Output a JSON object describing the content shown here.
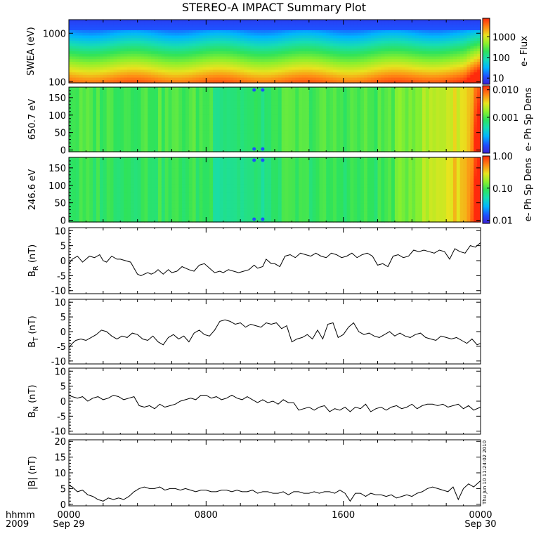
{
  "title": "STEREO-A IMPACT Summary Plot",
  "time_axis": {
    "row_label_1": "hhmm",
    "row_label_2": "2009",
    "ticks": [
      {
        "hour": 0,
        "label": "0000",
        "date": "Sep 29"
      },
      {
        "hour": 8,
        "label": "0800",
        "date": ""
      },
      {
        "hour": 16,
        "label": "1600",
        "date": ""
      },
      {
        "hour": 24,
        "label": "0000",
        "date": "Sep 30"
      }
    ]
  },
  "timestamp": "Thu Jun 10 11:24:02 2010",
  "chart_data": [
    {
      "type": "heatmap",
      "ylabel": "SWEA (eV)",
      "yscale": "log",
      "ylim": [
        95,
        1900
      ],
      "yticks": [
        {
          "v": 100,
          "label": "100"
        },
        {
          "v": 1000,
          "label": "1000"
        }
      ],
      "colorbar": {
        "label": "e- Flux",
        "scale": "log",
        "range": [
          5,
          8000
        ],
        "ticks": [
          {
            "v": 10,
            "label": "10"
          },
          {
            "v": 100,
            "label": "100"
          },
          {
            "v": 1000,
            "label": "1000"
          }
        ]
      }
    },
    {
      "type": "heatmap",
      "ylabel": "650.7 eV",
      "ylim": [
        -5,
        180
      ],
      "yticks": [
        {
          "v": 0,
          "label": "0"
        },
        {
          "v": 50,
          "label": "50"
        },
        {
          "v": 100,
          "label": "100"
        },
        {
          "v": 150,
          "label": "150"
        }
      ],
      "colorbar": {
        "label": "e- Ph Sp Dens",
        "scale": "log",
        "range": [
          5e-05,
          0.014
        ],
        "ticks": [
          {
            "v": 0.001,
            "label": "0.001"
          },
          {
            "v": 0.01,
            "label": "0.010"
          }
        ]
      }
    },
    {
      "type": "heatmap",
      "ylabel": "246.6 eV",
      "ylim": [
        -5,
        180
      ],
      "yticks": [
        {
          "v": 0,
          "label": "0"
        },
        {
          "v": 50,
          "label": "50"
        },
        {
          "v": 100,
          "label": "100"
        },
        {
          "v": 150,
          "label": "150"
        }
      ],
      "colorbar": {
        "label": "e- Ph Sp Dens",
        "scale": "log",
        "range": [
          0.008,
          1.0
        ],
        "ticks": [
          {
            "v": 0.01,
            "label": "0.01"
          },
          {
            "v": 0.1,
            "label": "0.10"
          },
          {
            "v": 1.0,
            "label": "1.00"
          }
        ]
      }
    },
    {
      "type": "line",
      "ylabel_main": "B",
      "ylabel_sub": "R",
      "ylabel_unit": " (nT)",
      "ylim": [
        -11,
        11
      ],
      "yticks": [
        {
          "v": -10,
          "label": "-10"
        },
        {
          "v": -5,
          "label": "-5"
        },
        {
          "v": 0,
          "label": "0"
        },
        {
          "v": 5,
          "label": "5"
        },
        {
          "v": 10,
          "label": "10"
        }
      ],
      "series": [
        {
          "x": [
            0,
            0.2,
            0.5,
            0.8,
            1.0,
            1.2,
            1.5,
            1.8,
            2.0,
            2.2,
            2.5,
            2.8,
            3.0,
            3.3,
            3.6,
            3.8,
            4.0,
            4.2,
            4.4,
            4.6,
            4.8,
            5.0,
            5.2,
            5.5,
            5.8,
            6.0,
            6.3,
            6.6,
            7.0,
            7.3,
            7.6,
            7.9,
            8.2,
            8.5,
            8.8,
            9.0,
            9.3,
            9.6,
            9.9,
            10.2,
            10.5,
            10.8,
            11.0,
            11.3,
            11.5,
            11.8,
            12.0,
            12.3,
            12.6,
            12.9,
            13.2,
            13.5,
            13.8,
            14.1,
            14.4,
            14.7,
            15.0,
            15.3,
            15.6,
            15.9,
            16.2,
            16.5,
            16.8,
            17.1,
            17.4,
            17.7,
            18.0,
            18.3,
            18.6,
            18.9,
            19.2,
            19.5,
            19.8,
            20.1,
            20.4,
            20.7,
            21.0,
            21.3,
            21.6,
            21.9,
            22.2,
            22.5,
            22.8,
            23.1,
            23.4,
            23.7,
            24.0
          ],
          "y": [
            -1.0,
            0.5,
            1.5,
            -0.5,
            0.5,
            1.5,
            1.0,
            2.0,
            0.0,
            -0.5,
            1.5,
            0.5,
            0.5,
            0.0,
            -0.5,
            -2.5,
            -4.5,
            -5.0,
            -4.5,
            -4.0,
            -4.5,
            -4.0,
            -3.0,
            -4.5,
            -3.0,
            -4.0,
            -3.5,
            -2.0,
            -3.0,
            -3.5,
            -1.5,
            -1.0,
            -2.5,
            -4.0,
            -3.5,
            -4.0,
            -3.0,
            -3.5,
            -4.0,
            -3.5,
            -3.0,
            -1.5,
            -2.5,
            -2.0,
            0.5,
            -1.0,
            -1.0,
            -2.0,
            1.5,
            2.0,
            1.0,
            2.5,
            2.0,
            1.5,
            2.5,
            1.5,
            1.0,
            2.5,
            2.0,
            1.0,
            1.5,
            2.5,
            1.0,
            2.0,
            2.5,
            1.5,
            -1.5,
            -1.0,
            -2.0,
            1.5,
            2.0,
            1.0,
            1.5,
            3.5,
            3.0,
            3.5,
            3.0,
            2.5,
            3.5,
            3.0,
            0.5,
            4.0,
            3.0,
            2.5,
            5.0,
            4.5,
            6.0
          ]
        }
      ]
    },
    {
      "type": "line",
      "ylabel_main": "B",
      "ylabel_sub": "T",
      "ylabel_unit": " (nT)",
      "ylim": [
        -11,
        11
      ],
      "yticks": [
        {
          "v": -10,
          "label": "-10"
        },
        {
          "v": -5,
          "label": "-5"
        },
        {
          "v": 0,
          "label": "0"
        },
        {
          "v": 5,
          "label": "5"
        },
        {
          "v": 10,
          "label": "10"
        }
      ],
      "series": [
        {
          "x": [
            0,
            0.2,
            0.4,
            0.7,
            1.0,
            1.3,
            1.6,
            1.9,
            2.2,
            2.5,
            2.8,
            3.1,
            3.4,
            3.7,
            4.0,
            4.3,
            4.6,
            4.9,
            5.2,
            5.5,
            5.8,
            6.1,
            6.4,
            6.7,
            7.0,
            7.3,
            7.6,
            7.9,
            8.2,
            8.5,
            8.8,
            9.1,
            9.4,
            9.7,
            10.0,
            10.3,
            10.6,
            10.9,
            11.2,
            11.5,
            11.8,
            12.1,
            12.4,
            12.7,
            13.0,
            13.3,
            13.6,
            13.9,
            14.2,
            14.5,
            14.8,
            15.1,
            15.4,
            15.7,
            16.0,
            16.3,
            16.6,
            16.9,
            17.2,
            17.5,
            17.8,
            18.1,
            18.4,
            18.7,
            19.0,
            19.3,
            19.6,
            19.9,
            20.2,
            20.5,
            20.8,
            21.1,
            21.4,
            21.7,
            22.0,
            22.3,
            22.6,
            22.9,
            23.2,
            23.5,
            23.8,
            24.0
          ],
          "y": [
            -5.5,
            -4.0,
            -3.0,
            -2.5,
            -3.0,
            -2.0,
            -1.0,
            0.5,
            0.0,
            -1.5,
            -2.5,
            -1.5,
            -2.0,
            -0.5,
            -1.0,
            -2.5,
            -3.0,
            -1.5,
            -3.5,
            -4.5,
            -2.0,
            -1.0,
            -2.5,
            -1.5,
            -3.5,
            -0.5,
            0.5,
            -1.0,
            -1.5,
            0.5,
            3.5,
            4.0,
            3.5,
            2.5,
            3.0,
            1.5,
            2.5,
            2.0,
            1.5,
            3.0,
            2.5,
            3.0,
            1.0,
            2.0,
            -3.5,
            -2.5,
            -2.0,
            -1.0,
            -2.5,
            0.5,
            -2.5,
            2.5,
            3.0,
            -2.0,
            -1.0,
            1.5,
            3.0,
            0.0,
            -1.0,
            -0.5,
            -1.5,
            -2.0,
            -1.0,
            0.0,
            -1.5,
            -0.5,
            -1.5,
            -2.0,
            -1.0,
            -0.5,
            -2.0,
            -2.5,
            -3.0,
            -1.5,
            -2.0,
            -2.5,
            -2.0,
            -3.0,
            -4.0,
            -2.5,
            -4.5,
            -4.0
          ]
        }
      ]
    },
    {
      "type": "line",
      "ylabel_main": "B",
      "ylabel_sub": "N",
      "ylabel_unit": " (nT)",
      "ylim": [
        -11,
        11
      ],
      "yticks": [
        {
          "v": -10,
          "label": "-10"
        },
        {
          "v": -5,
          "label": "-5"
        },
        {
          "v": 0,
          "label": "0"
        },
        {
          "v": 5,
          "label": "5"
        },
        {
          "v": 10,
          "label": "10"
        }
      ],
      "series": [
        {
          "x": [
            0,
            0.2,
            0.5,
            0.8,
            1.1,
            1.4,
            1.7,
            2.0,
            2.3,
            2.6,
            2.9,
            3.2,
            3.5,
            3.8,
            4.1,
            4.4,
            4.7,
            5.0,
            5.3,
            5.6,
            5.9,
            6.2,
            6.5,
            6.8,
            7.1,
            7.4,
            7.7,
            8.0,
            8.3,
            8.6,
            8.9,
            9.2,
            9.5,
            9.8,
            10.1,
            10.4,
            10.7,
            11.0,
            11.3,
            11.6,
            11.9,
            12.2,
            12.5,
            12.8,
            13.1,
            13.4,
            13.7,
            14.0,
            14.3,
            14.6,
            14.9,
            15.2,
            15.5,
            15.8,
            16.1,
            16.4,
            16.7,
            17.0,
            17.3,
            17.6,
            17.9,
            18.2,
            18.5,
            18.8,
            19.1,
            19.4,
            19.7,
            20.0,
            20.3,
            20.6,
            20.9,
            21.2,
            21.5,
            21.8,
            22.1,
            22.4,
            22.7,
            23.0,
            23.3,
            23.6,
            24.0
          ],
          "y": [
            2.0,
            1.5,
            1.0,
            1.5,
            0.0,
            1.0,
            1.5,
            0.5,
            1.0,
            2.0,
            1.5,
            0.5,
            1.0,
            1.5,
            -1.5,
            -2.0,
            -1.5,
            -2.5,
            -1.0,
            -2.0,
            -1.5,
            -1.0,
            0.0,
            0.5,
            1.0,
            0.5,
            2.0,
            2.0,
            1.0,
            1.5,
            0.5,
            1.0,
            2.0,
            1.0,
            0.5,
            1.5,
            0.5,
            -0.5,
            0.5,
            -0.5,
            0.0,
            -1.0,
            0.5,
            -0.5,
            -0.5,
            -3.0,
            -2.5,
            -2.0,
            -3.0,
            -2.0,
            -1.5,
            -3.5,
            -2.5,
            -3.0,
            -2.0,
            -3.5,
            -2.0,
            -2.5,
            -1.0,
            -3.5,
            -2.5,
            -2.0,
            -3.0,
            -2.0,
            -1.5,
            -2.5,
            -2.0,
            -1.0,
            -2.5,
            -1.5,
            -1.0,
            -1.0,
            -1.5,
            -1.0,
            -2.0,
            -1.5,
            -1.0,
            -2.5,
            -1.5,
            -3.0,
            -2.0
          ]
        }
      ]
    },
    {
      "type": "line",
      "ylabel_main": "|B| (nT)",
      "ylim": [
        -0.5,
        20.5
      ],
      "yticks": [
        {
          "v": 0,
          "label": "0"
        },
        {
          "v": 5,
          "label": "5"
        },
        {
          "v": 10,
          "label": "10"
        },
        {
          "v": 15,
          "label": "15"
        },
        {
          "v": 20,
          "label": "20"
        }
      ],
      "series": [
        {
          "x": [
            0,
            0.2,
            0.5,
            0.8,
            1.1,
            1.4,
            1.7,
            2.0,
            2.3,
            2.6,
            2.9,
            3.2,
            3.5,
            3.8,
            4.1,
            4.4,
            4.7,
            5.0,
            5.3,
            5.6,
            5.9,
            6.2,
            6.5,
            6.8,
            7.1,
            7.4,
            7.7,
            8.0,
            8.3,
            8.6,
            8.9,
            9.2,
            9.5,
            9.8,
            10.1,
            10.4,
            10.7,
            11.0,
            11.3,
            11.6,
            11.9,
            12.2,
            12.5,
            12.8,
            13.1,
            13.4,
            13.7,
            14.0,
            14.3,
            14.6,
            14.9,
            15.2,
            15.5,
            15.8,
            16.1,
            16.4,
            16.7,
            17.0,
            17.3,
            17.6,
            17.9,
            18.2,
            18.5,
            18.8,
            19.1,
            19.4,
            19.7,
            20.0,
            20.3,
            20.6,
            20.9,
            21.2,
            21.5,
            21.8,
            22.1,
            22.4,
            22.7,
            23.0,
            23.3,
            23.6,
            24.0
          ],
          "y": [
            6.0,
            5.5,
            4.0,
            4.5,
            3.0,
            2.5,
            1.5,
            1.0,
            2.0,
            1.5,
            2.0,
            1.5,
            2.5,
            4.0,
            5.0,
            5.5,
            5.0,
            5.0,
            5.5,
            4.5,
            5.0,
            5.0,
            4.5,
            5.0,
            4.5,
            4.0,
            4.5,
            4.5,
            4.0,
            4.0,
            4.5,
            4.5,
            4.0,
            4.5,
            4.0,
            4.0,
            4.5,
            3.5,
            4.0,
            4.0,
            3.5,
            3.5,
            4.0,
            3.0,
            4.0,
            4.0,
            3.5,
            3.5,
            4.0,
            3.5,
            4.0,
            4.0,
            3.5,
            4.5,
            3.5,
            1.0,
            3.5,
            3.5,
            2.5,
            3.5,
            3.0,
            3.0,
            2.5,
            3.0,
            2.0,
            2.5,
            3.0,
            2.5,
            3.5,
            4.0,
            5.0,
            5.5,
            5.0,
            4.5,
            4.0,
            5.5,
            1.5,
            5.0,
            6.5,
            5.5,
            7.5
          ]
        }
      ]
    }
  ]
}
